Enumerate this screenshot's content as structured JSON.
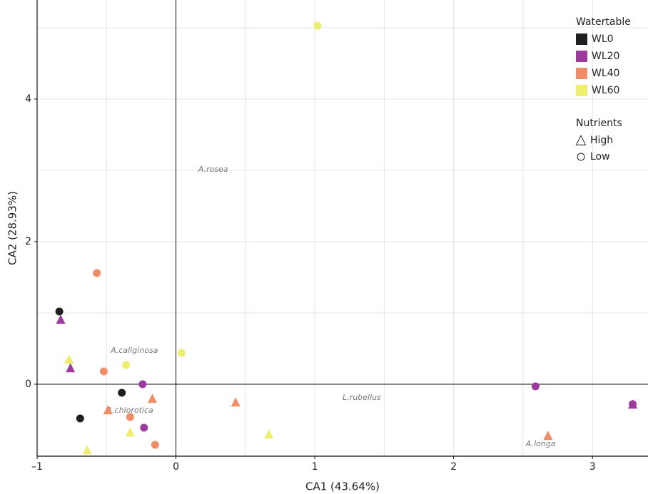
{
  "chart_data": {
    "type": "scatter",
    "x_label": "CA1 (43.64%)",
    "y_label": "CA2 (28.93%)",
    "xlim": [
      -1,
      3.4
    ],
    "ylim": [
      -1.01,
      5.39
    ],
    "xticks": [
      {
        "value": -1,
        "label": "–1"
      },
      0,
      1,
      2,
      3
    ],
    "yticks": [
      0,
      2,
      4
    ],
    "grid": true,
    "legend": {
      "watertable": {
        "title": "Watertable",
        "entries": [
          {
            "name": "WL0",
            "color": "#1f1f1f"
          },
          {
            "name": "WL20",
            "color": "#9c3a9e"
          },
          {
            "name": "WL40",
            "color": "#ef8d69"
          },
          {
            "name": "WL60",
            "color": "#eeee6e"
          }
        ]
      },
      "nutrients": {
        "title": "Nutrients",
        "entries": [
          {
            "name": "High",
            "marker": "triangle"
          },
          {
            "name": "Low",
            "marker": "circle"
          }
        ]
      }
    },
    "series": [
      {
        "watertable": "WL0",
        "nutrients": "Low",
        "x": [
          -0.84,
          -0.39,
          -0.69
        ],
        "y": [
          1.02,
          -0.12,
          -0.48
        ]
      },
      {
        "watertable": "WL20",
        "nutrients": "High",
        "x": [
          -0.83,
          -0.76,
          3.29
        ],
        "y": [
          0.9,
          0.22,
          -0.29
        ]
      },
      {
        "watertable": "WL20",
        "nutrients": "Low",
        "x": [
          -0.24,
          -0.23,
          2.59,
          3.29
        ],
        "y": [
          0.0,
          -0.61,
          -0.03,
          -0.28
        ]
      },
      {
        "watertable": "WL40",
        "nutrients": "Low",
        "x": [
          -0.57,
          -0.52,
          -0.33,
          -0.15
        ],
        "y": [
          1.56,
          0.18,
          -0.46,
          -0.85
        ]
      },
      {
        "watertable": "WL40",
        "nutrients": "High",
        "x": [
          -0.49,
          -0.17,
          0.43,
          2.68
        ],
        "y": [
          -0.37,
          -0.21,
          -0.26,
          -0.73
        ]
      },
      {
        "watertable": "WL60",
        "nutrients": "Low",
        "x": [
          1.02,
          0.04,
          -0.36
        ],
        "y": [
          5.03,
          0.44,
          0.27
        ]
      },
      {
        "watertable": "WL60",
        "nutrients": "High",
        "x": [
          -0.77,
          -0.33,
          0.67,
          -0.64
        ],
        "y": [
          0.34,
          -0.68,
          -0.71,
          -0.93
        ]
      }
    ],
    "annotations": [
      {
        "text": "A.rosea",
        "x": 0.15,
        "y": 3.01
      },
      {
        "text": "A.caliginosa",
        "x": -0.48,
        "y": 0.47
      },
      {
        "text": "A.chlorotica",
        "x": -0.51,
        "y": -0.37
      },
      {
        "text": "L.rubellus",
        "x": 1.19,
        "y": -0.19
      },
      {
        "text": "A.longa",
        "x": 2.51,
        "y": -0.84
      }
    ]
  }
}
